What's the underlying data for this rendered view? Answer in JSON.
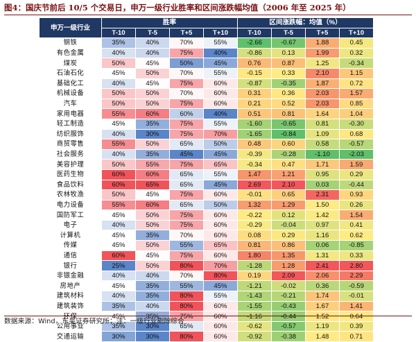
{
  "title": "图4：国庆节前后 10/5 个交易日，申万一级行业胜率和区间涨跌幅均值（2006 年至 2025 年）",
  "footer": "数据来源：Wind，东吴证券研究所；注：一级行业剔除综合",
  "table": {
    "industry_header": "申万一级行业",
    "group_headers": {
      "win_rate": "胜率",
      "return": "区间涨跌幅：均值（%）"
    },
    "sub_headers": [
      "T-10",
      "T-5",
      "T+5",
      "T+10",
      "T-10",
      "T-5",
      "T+5",
      "T+10"
    ],
    "colors": {
      "header_bg": "#1f3864",
      "win_low": "#5a85c8",
      "win_mid": "#ffffff",
      "win_high": "#f0545a",
      "ret_low": "#5fbf6a",
      "ret_mid": "#ffeb84",
      "ret_high": "#f2575b"
    },
    "rows": [
      {
        "name": "钢铁",
        "win": [
          "35%",
          "40%",
          "70%",
          "55%"
        ],
        "ret": [
          "-2.66",
          "-0.67",
          "1.88",
          "0.45"
        ]
      },
      {
        "name": "有色金属",
        "win": [
          "40%",
          "40%",
          "75%",
          "40%"
        ],
        "ret": [
          "-0.86",
          "0.13",
          "1.99",
          "0.32"
        ]
      },
      {
        "name": "煤炭",
        "win": [
          "50%",
          "45%",
          "50%",
          "45%"
        ],
        "ret": [
          "0.76",
          "0.87",
          "1.25",
          "-0.34"
        ]
      },
      {
        "name": "石油石化",
        "win": [
          "45%",
          "50%",
          "70%",
          "55%"
        ],
        "ret": [
          "-0.15",
          "0.33",
          "2.10",
          "1.15"
        ]
      },
      {
        "name": "基础化工",
        "win": [
          "40%",
          "45%",
          "75%",
          "60%"
        ],
        "ret": [
          "-0.87",
          "-0.35",
          "1.87",
          "0.72"
        ]
      },
      {
        "name": "机械设备",
        "win": [
          "50%",
          "50%",
          "70%",
          "60%"
        ],
        "ret": [
          "0.31",
          "0.36",
          "2.03",
          "1.57"
        ]
      },
      {
        "name": "汽车",
        "win": [
          "50%",
          "50%",
          "75%",
          "60%"
        ],
        "ret": [
          "0.21",
          "0.52",
          "2.03",
          "0.85"
        ]
      },
      {
        "name": "家用电器",
        "win": [
          "55%",
          "60%",
          "60%",
          "40%"
        ],
        "ret": [
          "0.51",
          "0.81",
          "1.64",
          "1.04"
        ]
      },
      {
        "name": "轻工制造",
        "win": [
          "45%",
          "35%",
          "75%",
          "55%"
        ],
        "ret": [
          "-1.60",
          "-0.65",
          "0.81",
          "-0.30"
        ]
      },
      {
        "name": "纺织服饰",
        "win": [
          "40%",
          "30%",
          "75%",
          "70%"
        ],
        "ret": [
          "-1.65",
          "-0.84",
          "1.09",
          "0.68"
        ]
      },
      {
        "name": "商贸零售",
        "win": [
          "55%",
          "50%",
          "65%",
          "50%"
        ],
        "ret": [
          "0.48",
          "0.60",
          "0.58",
          "-0.57"
        ]
      },
      {
        "name": "社会服务",
        "win": [
          "40%",
          "35%",
          "45%",
          "45%"
        ],
        "ret": [
          "-0.39",
          "-0.28",
          "-1.10",
          "-2.03"
        ]
      },
      {
        "name": "美容护理",
        "win": [
          "50%",
          "55%",
          "75%",
          "65%"
        ],
        "ret": [
          "-0.34",
          "0.47",
          "1.71",
          "1.59"
        ]
      },
      {
        "name": "医药生物",
        "win": [
          "60%",
          "60%",
          "65%",
          "55%"
        ],
        "ret": [
          "1.47",
          "1.21",
          "0.95",
          "0.29"
        ]
      },
      {
        "name": "食品饮料",
        "win": [
          "60%",
          "65%",
          "65%",
          "45%"
        ],
        "ret": [
          "2.69",
          "2.10",
          "0.03",
          "-0.44"
        ]
      },
      {
        "name": "农林牧渔",
        "win": [
          "50%",
          "45%",
          "75%",
          "60%"
        ],
        "ret": [
          "-0.01",
          "0.65",
          "2.31",
          "0.93"
        ]
      },
      {
        "name": "电力设备",
        "win": [
          "55%",
          "60%",
          "65%",
          "50%"
        ],
        "ret": [
          "1.32",
          "1.29",
          "1.50",
          "0.26"
        ]
      },
      {
        "name": "国防军工",
        "win": [
          "45%",
          "50%",
          "75%",
          "60%"
        ],
        "ret": [
          "-0.22",
          "0.12",
          "1.42",
          "1.54"
        ]
      },
      {
        "name": "电子",
        "win": [
          "40%",
          "50%",
          "75%",
          "60%"
        ],
        "ret": [
          "-0.29",
          "-0.04",
          "0.97",
          "0.41"
        ]
      },
      {
        "name": "计算机",
        "win": [
          "45%",
          "35%",
          "70%",
          "60%"
        ],
        "ret": [
          "0.08",
          "0.29",
          "1.16",
          "0.62"
        ]
      },
      {
        "name": "传媒",
        "win": [
          "45%",
          "50%",
          "55%",
          "65%"
        ],
        "ret": [
          "0.81",
          "0.86",
          "0.06",
          "-0.85"
        ]
      },
      {
        "name": "通信",
        "win": [
          "60%",
          "45%",
          "75%",
          "60%"
        ],
        "ret": [
          "1.80",
          "1.35",
          "1.31",
          "0.33"
        ]
      },
      {
        "name": "银行",
        "win": [
          "25%",
          "50%",
          "80%",
          "70%"
        ],
        "ret": [
          "-1.28",
          "1.28",
          "2.41",
          "2.80"
        ]
      },
      {
        "name": "非银金融",
        "win": [
          "40%",
          "40%",
          "70%",
          "80%"
        ],
        "ret": [
          "0.19",
          "2.09",
          "2.06",
          "2.29"
        ]
      },
      {
        "name": "房地产",
        "win": [
          "45%",
          "35%",
          "55%",
          "45%"
        ],
        "ret": [
          "-1.21",
          "-0.02",
          "0.36",
          "-0.59"
        ]
      },
      {
        "name": "建筑材料",
        "win": [
          "40%",
          "35%",
          "80%",
          "55%"
        ],
        "ret": [
          "-1.43",
          "-0.21",
          "1.74",
          "-0.01"
        ]
      },
      {
        "name": "建筑装饰",
        "win": [
          "35%",
          "40%",
          "80%",
          "60%"
        ],
        "ret": [
          "-1.55",
          "-0.43",
          "1.67",
          "1.41"
        ]
      },
      {
        "name": "环保",
        "win": [
          "45%",
          "35%",
          "75%",
          "60%"
        ],
        "ret": [
          "-1.16",
          "-0.44",
          "1.52",
          "0.64"
        ]
      },
      {
        "name": "公用事业",
        "win": [
          "35%",
          "30%",
          "65%",
          "60%"
        ],
        "ret": [
          "-0.62",
          "-0.57",
          "1.19",
          "0.39"
        ]
      },
      {
        "name": "交通运输",
        "win": [
          "30%",
          "30%",
          "80%",
          "60%"
        ],
        "ret": [
          "-0.92",
          "-0.38",
          "1.48",
          "0.71"
        ]
      }
    ]
  }
}
